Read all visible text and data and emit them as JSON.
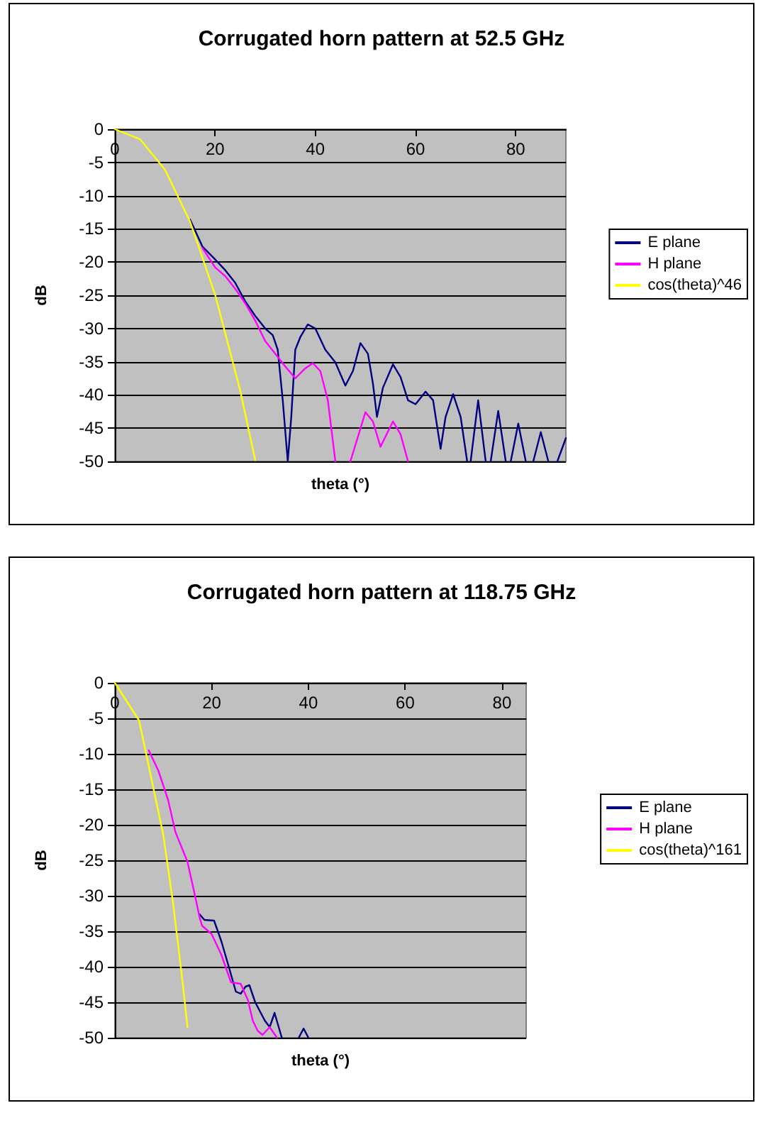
{
  "chart_data": [
    {
      "type": "line",
      "title": "Corrugated horn pattern at 52.5 GHz",
      "xlabel": "theta (°)",
      "ylabel": "dB",
      "xlim": [
        0,
        90
      ],
      "xticks": [
        0,
        20,
        40,
        60,
        80
      ],
      "ylim": [
        -50,
        0
      ],
      "yticks": [
        0,
        -5,
        -10,
        -15,
        -20,
        -25,
        -30,
        -35,
        -40,
        -45,
        -50
      ],
      "grid": "y",
      "legend": "right",
      "marker": "none",
      "line_style": "solid",
      "series": [
        {
          "name": "E plane",
          "color": "#000080",
          "x": [
            15,
            17.5,
            20,
            22,
            24,
            26,
            28,
            30,
            31.5,
            32.5,
            33.5,
            34.5,
            35.2,
            36,
            37,
            38.5,
            40,
            42,
            44,
            46,
            47.5,
            49,
            50.5,
            51.5,
            52.3,
            53.5,
            55.5,
            57,
            58.5,
            60,
            62,
            63.5,
            65,
            66,
            67.5,
            69,
            70.3,
            70.6,
            71,
            72.5,
            74,
            74.5,
            75,
            76.5,
            78,
            78.5,
            79,
            80.5,
            82,
            82.7,
            83.5,
            85,
            86.5,
            87.4,
            88.3,
            90
          ],
          "values": [
            -13.6,
            -17.7,
            -19.6,
            -21.2,
            -23.1,
            -25.9,
            -28.1,
            -30,
            -31,
            -33.2,
            -40.8,
            -50,
            -43.3,
            -33.2,
            -31.3,
            -29.4,
            -30,
            -33.2,
            -35.1,
            -38.6,
            -36.4,
            -32.2,
            -33.8,
            -38.3,
            -43.3,
            -38.9,
            -35.4,
            -37.3,
            -40.8,
            -41.4,
            -39.5,
            -40.8,
            -48.1,
            -43.3,
            -39.9,
            -43.3,
            -50,
            null,
            -50,
            -40.8,
            -50,
            null,
            -50,
            -42.4,
            -50,
            null,
            -50,
            -44.3,
            -50,
            null,
            -50,
            -45.6,
            -50,
            null,
            -50,
            -46.5
          ]
        },
        {
          "name": "H plane",
          "color": "#ff00ff",
          "x": [
            17.5,
            20,
            22,
            24,
            26,
            28,
            30,
            32,
            34,
            36,
            38,
            39.5,
            41,
            42.5,
            44,
            45.5,
            47,
            50,
            51.5,
            53,
            55.5,
            57,
            58.5
          ],
          "values": [
            -17.9,
            -20.8,
            -22.1,
            -24,
            -26.2,
            -28.8,
            -31.9,
            -33.8,
            -35.7,
            -37.5,
            -36,
            -35.2,
            -36.4,
            -40.8,
            -50,
            null,
            -50,
            -42.6,
            -44,
            -47.8,
            -44,
            -45.9,
            -50
          ]
        },
        {
          "name": "cos(theta)^46",
          "color": "#ffff00",
          "x": [
            0,
            5,
            10,
            15,
            20,
            25,
            28
          ],
          "values": [
            0,
            -1.5,
            -6.1,
            -13.9,
            -24.9,
            -39.3,
            -49.8
          ]
        }
      ]
    },
    {
      "type": "line",
      "title": "Corrugated horn pattern at 118.75 GHz",
      "xlabel": "theta (°)",
      "ylabel": "dB",
      "xlim": [
        0,
        85
      ],
      "xticks": [
        0,
        20,
        40,
        60,
        80
      ],
      "ylim": [
        -50,
        0
      ],
      "yticks": [
        0,
        -5,
        -10,
        -15,
        -20,
        -25,
        -30,
        -35,
        -40,
        -45,
        -50
      ],
      "grid": "y",
      "legend": "right",
      "marker": "none",
      "line_style": "solid",
      "series": [
        {
          "name": "E plane",
          "color": "#000080",
          "x": [
            17.5,
            18.5,
            20.5,
            22,
            23.5,
            25,
            26,
            27,
            27.8,
            29,
            31,
            32,
            33,
            34.5,
            36,
            38,
            39,
            40
          ],
          "values": [
            -32.6,
            -33.4,
            -33.5,
            -36.4,
            -39.9,
            -43.5,
            -43.8,
            -42.8,
            -42.6,
            -45,
            -47.6,
            -48.5,
            -46.5,
            -50,
            null,
            -50,
            -48.7,
            -50
          ]
        },
        {
          "name": "H plane",
          "color": "#ff00ff",
          "x": [
            7,
            9,
            11,
            12.5,
            15,
            16.5,
            17.5,
            18,
            20,
            22,
            24,
            26,
            27.5,
            28.5,
            29.5,
            30.5,
            32,
            33.5
          ],
          "values": [
            -9.5,
            -12.4,
            -16.5,
            -21,
            -25.2,
            -29.8,
            -33,
            -34.2,
            -35.4,
            -38.3,
            -42.2,
            -42.4,
            -44.7,
            -47.6,
            -49,
            -49.6,
            -48.5,
            -50
          ]
        },
        {
          "name": "cos(theta)^161",
          "color": "#ffff00",
          "x": [
            0,
            5,
            10,
            12,
            14,
            15
          ],
          "values": [
            0,
            -5.3,
            -21.4,
            -30.9,
            -42.2,
            -48.5
          ]
        }
      ]
    }
  ]
}
